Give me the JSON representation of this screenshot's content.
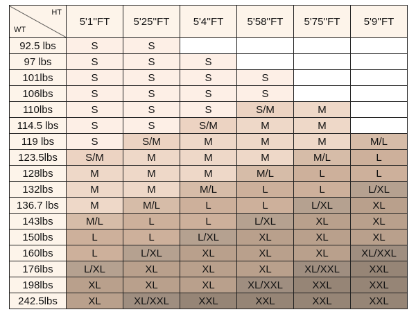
{
  "corner": {
    "ht": "HT",
    "wt": "WT"
  },
  "heights": [
    "5'1''FT",
    "5'25''FT",
    "5'4''FT",
    "5'58''FT",
    "5'75''FT",
    "5'9''FT"
  ],
  "rows": [
    {
      "wt": "92.5 lbs",
      "sizes": [
        "S",
        "S",
        "",
        "",
        "",
        ""
      ]
    },
    {
      "wt": "97 lbs",
      "sizes": [
        "S",
        "S",
        "S",
        "",
        "",
        ""
      ]
    },
    {
      "wt": "101lbs",
      "sizes": [
        "S",
        "S",
        "S",
        "S",
        "",
        ""
      ]
    },
    {
      "wt": "106lbs",
      "sizes": [
        "S",
        "S",
        "S",
        "S",
        "",
        ""
      ]
    },
    {
      "wt": "110lbs",
      "sizes": [
        "S",
        "S",
        "S",
        "S/M",
        "M",
        ""
      ]
    },
    {
      "wt": "114.5 lbs",
      "sizes": [
        "S",
        "S",
        "S/M",
        "M",
        "M",
        ""
      ]
    },
    {
      "wt": "119 lbs",
      "sizes": [
        "S",
        "S/M",
        "M",
        "M",
        "M",
        "M/L"
      ]
    },
    {
      "wt": "123.5lbs",
      "sizes": [
        "S/M",
        "M",
        "M",
        "M",
        "M/L",
        "L"
      ]
    },
    {
      "wt": "128lbs",
      "sizes": [
        "M",
        "M",
        "M",
        "M/L",
        "L",
        "L"
      ]
    },
    {
      "wt": "132lbs",
      "sizes": [
        "M",
        "M",
        "M/L",
        "L",
        "L",
        "L/XL"
      ]
    },
    {
      "wt": "136.7 lbs",
      "sizes": [
        "M",
        "M/L",
        "L",
        "L",
        "L/XL",
        "XL"
      ]
    },
    {
      "wt": "143lbs",
      "sizes": [
        "M/L",
        "L",
        "L",
        "L/XL",
        "XL",
        "XL"
      ]
    },
    {
      "wt": "150lbs",
      "sizes": [
        "L",
        "L",
        "L/XL",
        "XL",
        "XL",
        "XL"
      ]
    },
    {
      "wt": "160lbs",
      "sizes": [
        "L",
        "L/XL",
        "XL",
        "XL",
        "XL",
        "XL/XXL"
      ]
    },
    {
      "wt": "176lbs",
      "sizes": [
        "L/XL",
        "XL",
        "XL",
        "XL",
        "XL/XXL",
        "XXL"
      ]
    },
    {
      "wt": "198lbs",
      "sizes": [
        "XL",
        "XL",
        "XL",
        "XL/XXL",
        "XXL",
        "XXL"
      ]
    },
    {
      "wt": "242.5lbs",
      "sizes": [
        "XL",
        "XL/XXL",
        "XXL",
        "XXL",
        "XXL",
        "XXL"
      ]
    }
  ],
  "colors": {
    "": "#ffffff",
    "S": "#fdefe6",
    "S/M": "#ecd3c2",
    "M": "#eed8c8",
    "M/L": "#d6bca8",
    "L": "#cdb09b",
    "L/XL": "#b5a190",
    "XL": "#b9a08c",
    "XL/XXL": "#9f8e80",
    "XXL": "#968576"
  }
}
